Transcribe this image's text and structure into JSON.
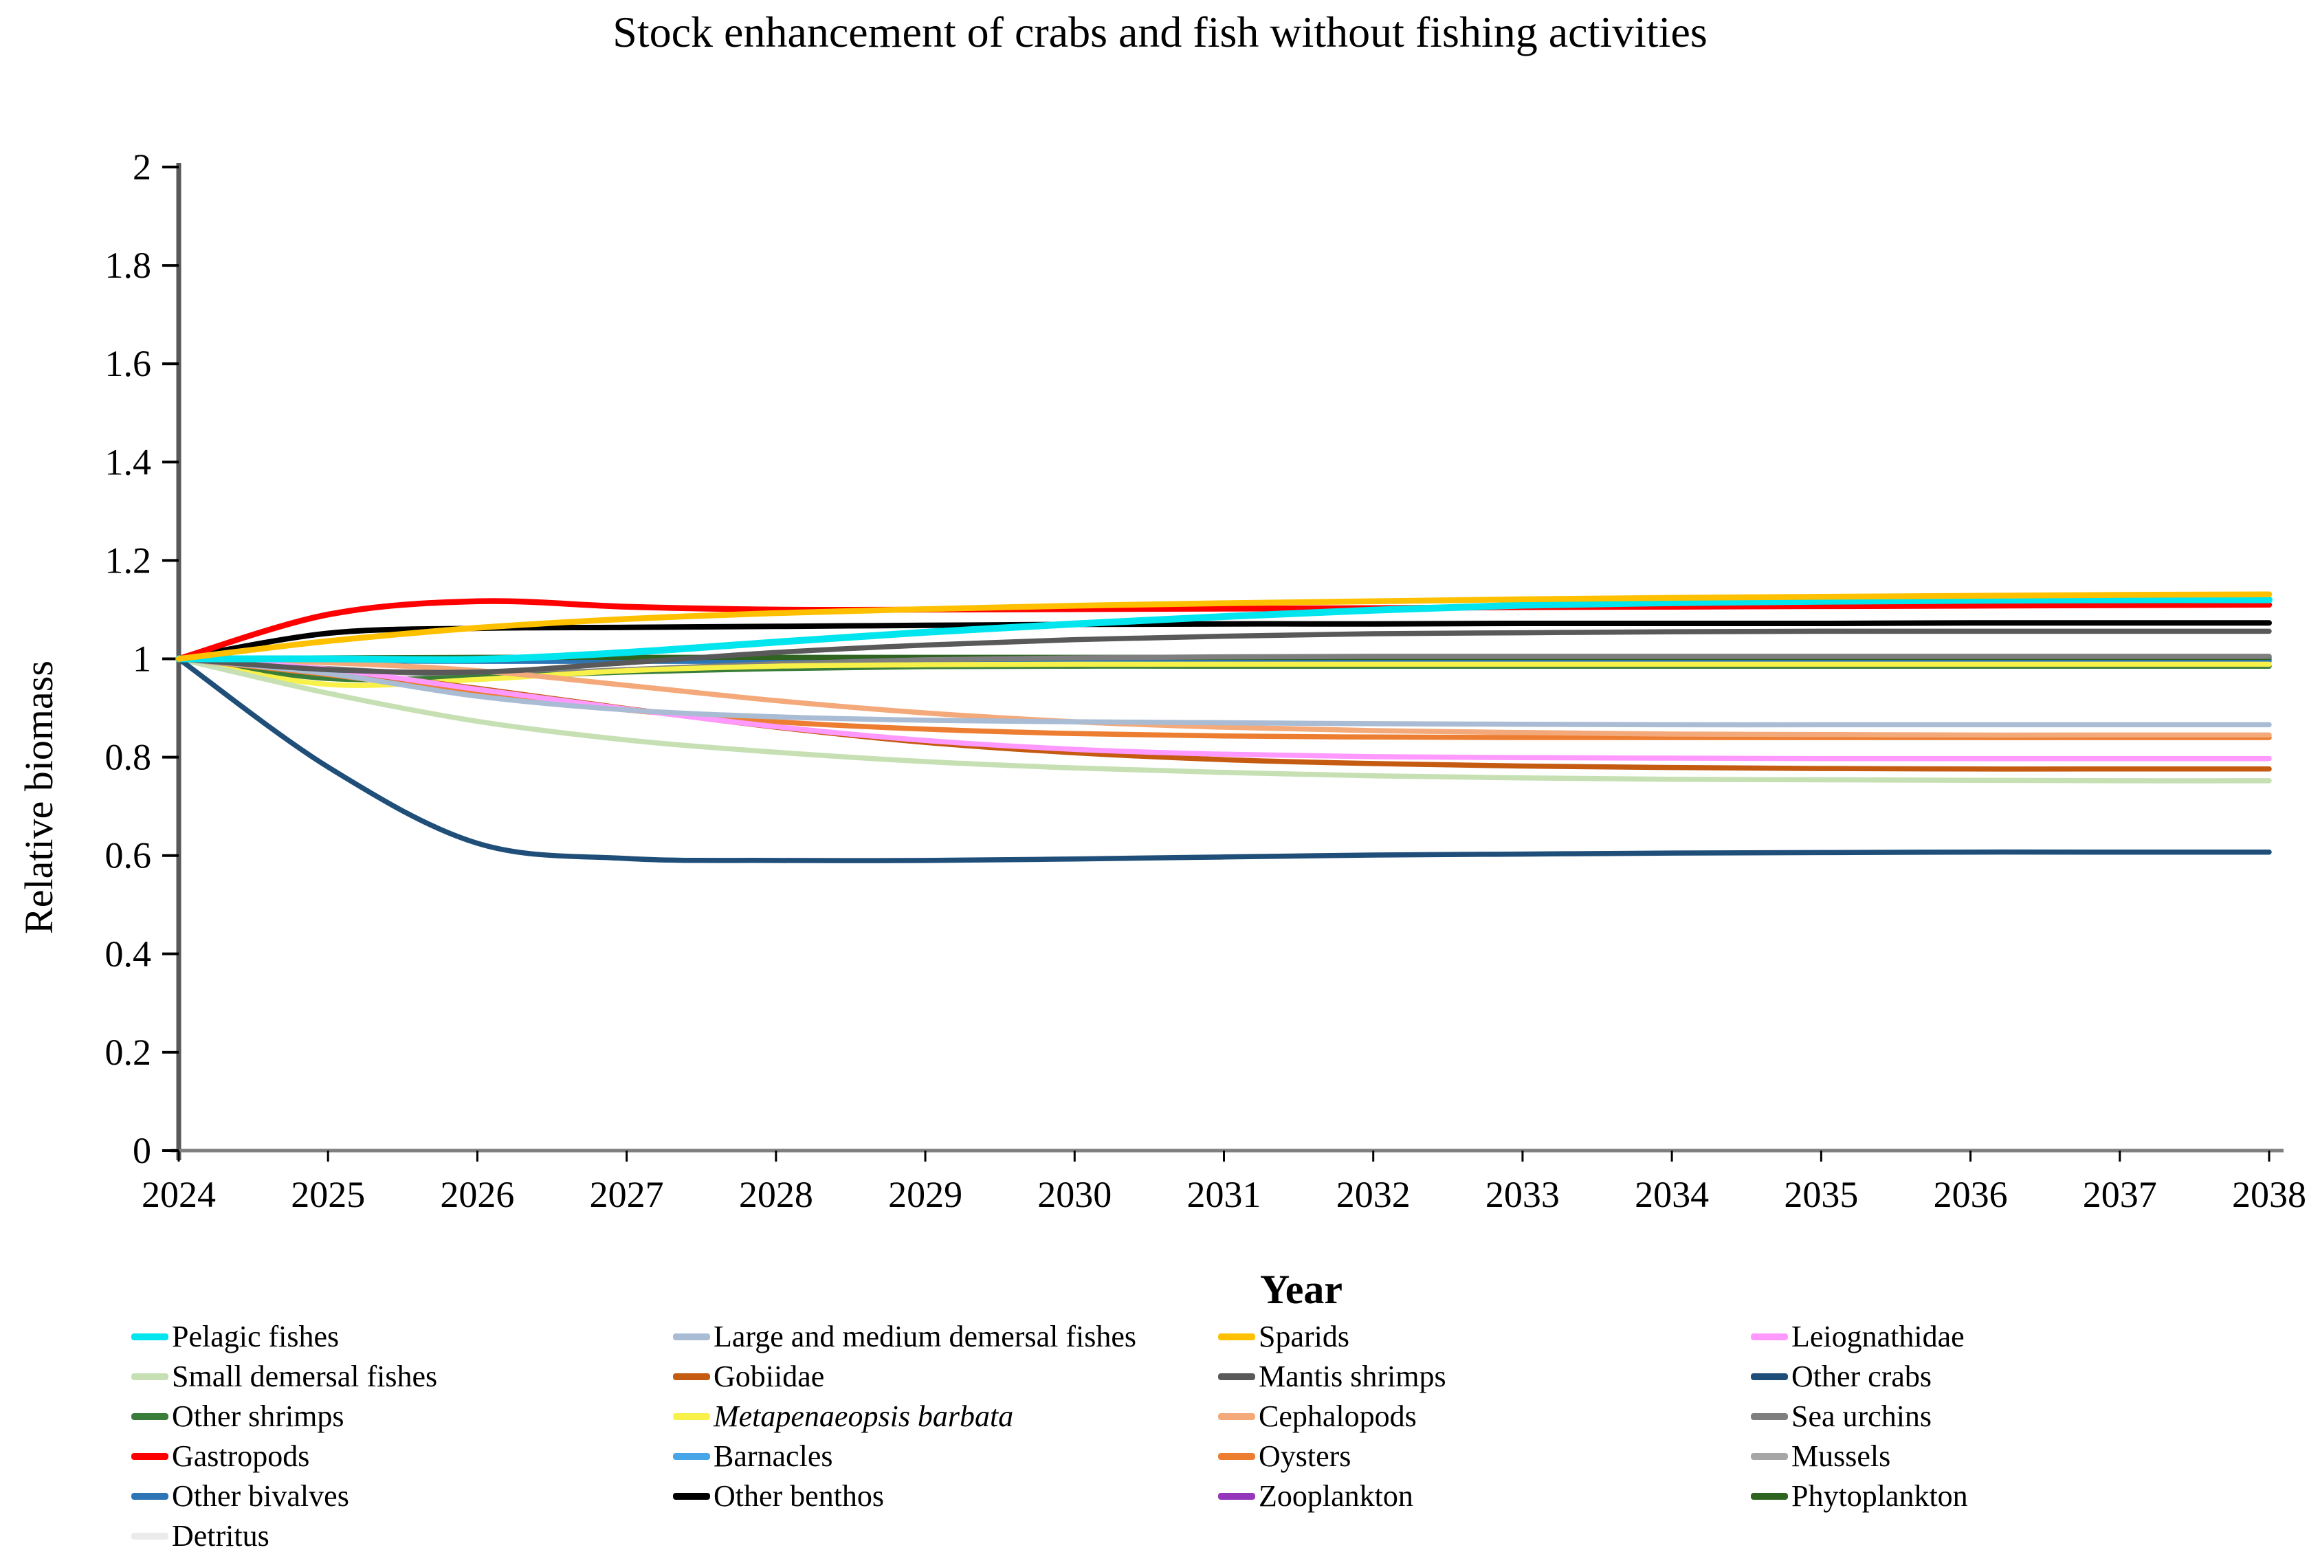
{
  "title": "Stock enhancement of crabs and fish without fishing activities",
  "chart_data": {
    "type": "line",
    "title": "Stock enhancement of crabs and fish without fishing activities",
    "xlabel": "Year",
    "ylabel": "Relative biomass",
    "x": [
      2024,
      2025,
      2026,
      2027,
      2028,
      2029,
      2030,
      2031,
      2032,
      2033,
      2034,
      2035,
      2036,
      2037,
      2038
    ],
    "ylim": [
      0,
      2
    ],
    "grid": false,
    "legend_position": "bottom",
    "yticks": [
      {
        "v": 0,
        "label": "0"
      },
      {
        "v": 0.2,
        "label": "0.2"
      },
      {
        "v": 0.4,
        "label": "0.4"
      },
      {
        "v": 0.6,
        "label": "0.6"
      },
      {
        "v": 0.8,
        "label": "0.8"
      },
      {
        "v": 1,
        "label": "1"
      },
      {
        "v": 1.2,
        "label": "1.2"
      },
      {
        "v": 1.4,
        "label": "1.4"
      },
      {
        "v": 1.6,
        "label": "1.6"
      },
      {
        "v": 1.8,
        "label": "1.8"
      },
      {
        "v": 2,
        "label": "2"
      }
    ],
    "series": [
      {
        "id": "barnacles",
        "name": "Barnacles",
        "color": "#47A5E8",
        "values": [
          1.0,
          0.999,
          0.999,
          0.999,
          0.999,
          0.999,
          0.999,
          0.999,
          0.999,
          0.999,
          0.999,
          0.999,
          0.999,
          0.999,
          0.999
        ]
      },
      {
        "id": "zooplankton",
        "name": "Zooplankton",
        "color": "#9437BB",
        "values": [
          1.0,
          0.998,
          0.998,
          0.998,
          0.998,
          0.998,
          0.998,
          0.998,
          0.998,
          0.998,
          0.998,
          0.998,
          0.998,
          0.998,
          0.998
        ]
      },
      {
        "id": "mussels",
        "name": "Mussels",
        "color": "#A6A6A6",
        "values": [
          1.0,
          1.001,
          1.001,
          1.001,
          1.001,
          1.001,
          1.001,
          1.001,
          1.001,
          1.001,
          1.001,
          1.001,
          1.001,
          1.001,
          1.001
        ]
      },
      {
        "id": "detritus",
        "name": "Detritus",
        "color": "#EBEBEB",
        "values": [
          1.0,
          1.0,
          1.0,
          1.0,
          1.0,
          1.0,
          1.0,
          1.0,
          1.0,
          1.0,
          1.0,
          1.0,
          1.0,
          1.0,
          1.0
        ]
      },
      {
        "id": "other_bivalves",
        "name": "Other bivalves",
        "color": "#2E75B6",
        "values": [
          1.0,
          0.996,
          0.995,
          0.995,
          0.995,
          0.995,
          0.995,
          0.996,
          0.996,
          0.996,
          0.996,
          0.996,
          0.996,
          0.996,
          0.996
        ]
      },
      {
        "id": "phytoplankton",
        "name": "Phytoplankton",
        "color": "#2F6420",
        "values": [
          1.0,
          1.002,
          1.003,
          1.003,
          1.003,
          1.003,
          1.003,
          1.003,
          1.003,
          1.003,
          1.003,
          1.003,
          1.003,
          1.003,
          1.003
        ]
      },
      {
        "id": "sea_urchins",
        "name": "Sea urchins",
        "color": "#7F7F7F",
        "values": [
          1.0,
          0.98,
          0.968,
          0.978,
          0.99,
          0.998,
          1.002,
          1.004,
          1.005,
          1.005,
          1.005,
          1.005,
          1.005,
          1.005,
          1.005
        ]
      },
      {
        "id": "other_shrimps",
        "name": "Other shrimps",
        "color": "#3A7D3A",
        "values": [
          1.0,
          0.96,
          0.963,
          0.973,
          0.98,
          0.984,
          0.985,
          0.985,
          0.985,
          0.985,
          0.985,
          0.985,
          0.985,
          0.985,
          0.985
        ]
      },
      {
        "id": "metapenaeopsis",
        "name": "Metapenaeopsis barbata",
        "italic": true,
        "color": "#F7F14A",
        "values": [
          1.0,
          0.948,
          0.958,
          0.976,
          0.985,
          0.988,
          0.989,
          0.989,
          0.989,
          0.989,
          0.989,
          0.989,
          0.989,
          0.989,
          0.989
        ]
      },
      {
        "id": "small_demersal",
        "name": "Small demersal fishes",
        "color": "#C6E0B4",
        "values": [
          1.0,
          0.93,
          0.873,
          0.835,
          0.81,
          0.791,
          0.778,
          0.769,
          0.762,
          0.758,
          0.755,
          0.754,
          0.753,
          0.752,
          0.752
        ]
      },
      {
        "id": "oysters",
        "name": "Oysters",
        "color": "#ED7D31",
        "values": [
          1.0,
          0.968,
          0.93,
          0.896,
          0.872,
          0.857,
          0.848,
          0.843,
          0.841,
          0.84,
          0.84,
          0.84,
          0.84,
          0.84,
          0.84
        ]
      },
      {
        "id": "cephalopods",
        "name": "Cephalopods",
        "color": "#F4A97A",
        "values": [
          1.0,
          0.992,
          0.976,
          0.946,
          0.915,
          0.89,
          0.872,
          0.861,
          0.854,
          0.85,
          0.847,
          0.846,
          0.845,
          0.845,
          0.845
        ]
      },
      {
        "id": "gobiidae",
        "name": "Gobiidae",
        "color": "#C55A11",
        "values": [
          1.0,
          0.976,
          0.94,
          0.899,
          0.861,
          0.83,
          0.809,
          0.795,
          0.787,
          0.782,
          0.779,
          0.777,
          0.776,
          0.776,
          0.776
        ]
      },
      {
        "id": "leiognathidae",
        "name": "Leiognathidae",
        "color": "#FF99FF",
        "values": [
          1.0,
          0.979,
          0.938,
          0.898,
          0.862,
          0.834,
          0.816,
          0.806,
          0.801,
          0.799,
          0.798,
          0.797,
          0.797,
          0.797,
          0.797
        ]
      },
      {
        "id": "large_medium",
        "name": "Large and medium demersal fishes",
        "color": "#A9BCD4",
        "values": [
          1.0,
          0.97,
          0.924,
          0.896,
          0.882,
          0.875,
          0.872,
          0.87,
          0.868,
          0.867,
          0.866,
          0.866,
          0.866,
          0.866,
          0.866
        ]
      },
      {
        "id": "mantis",
        "name": "Mantis shrimps",
        "color": "#595959",
        "values": [
          1.0,
          0.978,
          0.973,
          0.992,
          1.013,
          1.028,
          1.039,
          1.046,
          1.051,
          1.053,
          1.055,
          1.056,
          1.056,
          1.056,
          1.056
        ]
      },
      {
        "id": "other_crabs",
        "name": "Other crabs",
        "color": "#1F4E79",
        "values": [
          1.0,
          0.78,
          0.625,
          0.594,
          0.59,
          0.59,
          0.593,
          0.597,
          0.601,
          0.603,
          0.605,
          0.606,
          0.607,
          0.607,
          0.607
        ]
      },
      {
        "id": "other_benthos",
        "name": "Other benthos",
        "color": "#000000",
        "values": [
          1.0,
          1.052,
          1.062,
          1.064,
          1.066,
          1.068,
          1.07,
          1.071,
          1.071,
          1.072,
          1.072,
          1.072,
          1.073,
          1.073,
          1.073
        ]
      },
      {
        "id": "gastropods",
        "name": "Gastropods",
        "color": "#FF0000",
        "values": [
          1.0,
          1.09,
          1.117,
          1.106,
          1.1,
          1.1,
          1.101,
          1.102,
          1.103,
          1.105,
          1.106,
          1.107,
          1.108,
          1.109,
          1.11
        ]
      },
      {
        "id": "pelagic",
        "name": "Pelagic fishes",
        "color": "#00E5EE",
        "values": [
          1.0,
          1.0,
          0.999,
          1.013,
          1.034,
          1.054,
          1.071,
          1.086,
          1.099,
          1.109,
          1.114,
          1.117,
          1.119,
          1.12,
          1.12
        ]
      },
      {
        "id": "sparids",
        "name": "Sparids",
        "color": "#FFC000",
        "values": [
          1.0,
          1.036,
          1.063,
          1.081,
          1.093,
          1.101,
          1.108,
          1.113,
          1.117,
          1.121,
          1.124,
          1.126,
          1.128,
          1.13,
          1.131
        ]
      }
    ],
    "legend_columns": [
      [
        "pelagic",
        "small_demersal",
        "other_shrimps",
        "gastropods",
        "other_bivalves",
        "detritus"
      ],
      [
        "large_medium",
        "gobiidae",
        "metapenaeopsis",
        "barnacles",
        "other_benthos"
      ],
      [
        "sparids",
        "mantis",
        "cephalopods",
        "oysters",
        "zooplankton"
      ],
      [
        "leiognathidae",
        "other_crabs",
        "sea_urchins",
        "mussels",
        "phytoplankton"
      ]
    ]
  }
}
